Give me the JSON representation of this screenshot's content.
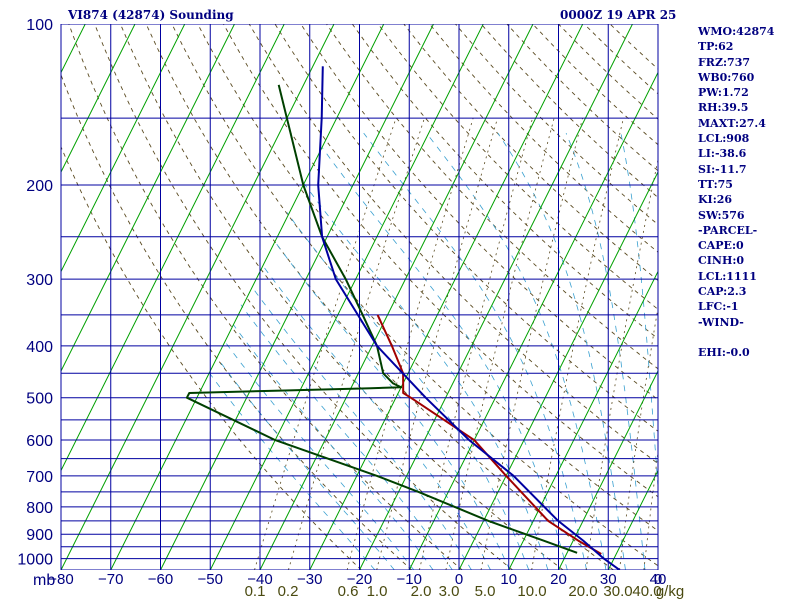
{
  "header": {
    "station": "VI874 (42874) Sounding",
    "time": "0000Z 19 APR 25"
  },
  "stats": [
    "WMO:42874",
    "TP:62",
    "FRZ:737",
    "WB0:760",
    "PW:1.72",
    "RH:39.5",
    "MAXT:27.4",
    "LCL:908",
    "LI:-38.6",
    "SI:-11.7",
    "TT:75",
    "KI:26",
    "SW:576",
    "-PARCEL-",
    "CAPE:0",
    "CINH:0",
    "LCL:1111",
    "CAP:2.3",
    "LFC:-1",
    "-WIND-",
    "",
    "EHI:-0.0"
  ],
  "colors": {
    "grid": "#0000a0",
    "isotherm": "#00a000",
    "dry_adiabat": "#5a4a20",
    "moist_adiabat": "#3aa0d0",
    "temperature": "#a00000",
    "dewpoint": "#004000",
    "parcel": "#0000a0",
    "mixing_ratio_text": "#4a4a10"
  },
  "chart_data": {
    "type": "skew-t",
    "pressure_axis": {
      "unit_label": "mb",
      "ticks": [
        100,
        200,
        300,
        400,
        500,
        600,
        700,
        800,
        900,
        1000
      ],
      "gridlines": [
        100,
        150,
        200,
        250,
        300,
        350,
        400,
        450,
        500,
        550,
        600,
        650,
        700,
        750,
        800,
        850,
        900,
        950,
        1000,
        1050
      ],
      "range": [
        100,
        1050
      ]
    },
    "temperature_axis": {
      "ticks": [
        "−80",
        "−70",
        "−60",
        "−50",
        "−40",
        "−30",
        "−20",
        "−10",
        "0",
        "10",
        "20",
        "30",
        "40"
      ],
      "values": [
        -80,
        -70,
        -60,
        -50,
        -40,
        -30,
        -20,
        -10,
        0,
        10,
        20,
        30,
        40
      ],
      "range": [
        -80,
        40
      ]
    },
    "mixing_ratio_axis": {
      "unit": "g/kg",
      "labels": [
        "0.1",
        "0.2",
        "0.6",
        "1.0",
        "2.0",
        "3.0",
        "5.0",
        "10.0",
        "20.0",
        "30.0",
        "40.0"
      ],
      "values": [
        0.1,
        0.2,
        0.6,
        1.0,
        2.0,
        3.0,
        5.0,
        10.0,
        20.0,
        30.0,
        40.0
      ]
    },
    "extra_label": "0",
    "series": [
      {
        "key": "temperature",
        "points": [
          [
            980,
            27
          ],
          [
            925,
            21
          ],
          [
            850,
            13
          ],
          [
            700,
            0
          ],
          [
            600,
            -10
          ],
          [
            500,
            -27
          ],
          [
            490,
            -29
          ],
          [
            450,
            -31
          ],
          [
            400,
            -36
          ],
          [
            350,
            -42
          ]
        ]
      },
      {
        "key": "dewpoint",
        "points": [
          [
            975,
            22
          ],
          [
            925,
            14
          ],
          [
            850,
            1
          ],
          [
            750,
            -16
          ],
          [
            700,
            -26
          ],
          [
            600,
            -50
          ],
          [
            500,
            -72
          ],
          [
            490,
            -72
          ],
          [
            485,
            -54
          ],
          [
            480,
            -36
          ],
          [
            478,
            -30
          ],
          [
            470,
            -32
          ],
          [
            450,
            -35
          ],
          [
            400,
            -39
          ],
          [
            350,
            -45
          ],
          [
            300,
            -52
          ],
          [
            250,
            -61
          ],
          [
            200,
            -70
          ],
          [
            150,
            -80
          ],
          [
            130,
            -85
          ]
        ]
      },
      {
        "key": "parcel",
        "points": [
          [
            1050,
            32.3
          ],
          [
            1000,
            28
          ],
          [
            925,
            22
          ],
          [
            850,
            15
          ],
          [
            700,
            1.5
          ],
          [
            600,
            -11
          ],
          [
            500,
            -24
          ],
          [
            400,
            -39
          ],
          [
            300,
            -54
          ],
          [
            250,
            -61
          ],
          [
            200,
            -67
          ],
          [
            150,
            -73
          ],
          [
            120,
            -78
          ]
        ]
      }
    ]
  }
}
